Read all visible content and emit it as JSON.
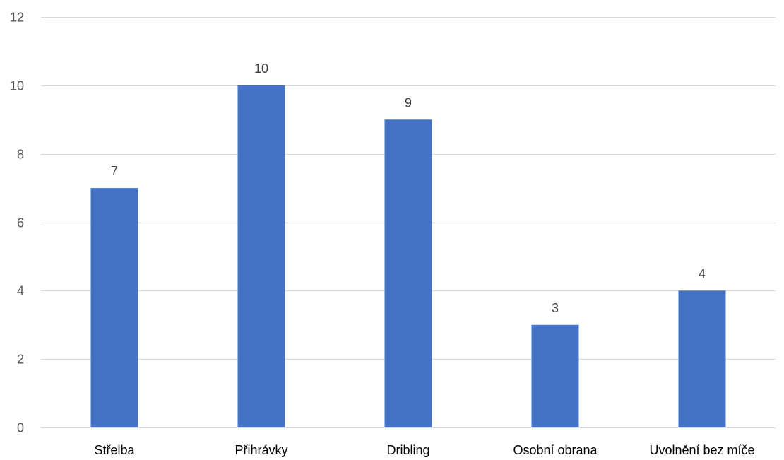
{
  "chart_data": {
    "type": "bar",
    "categories": [
      "Střelba",
      "Přihrávky",
      "Dribling",
      "Osobní obrana",
      "Uvolnění bez míče"
    ],
    "values": [
      7,
      10,
      9,
      3,
      4
    ],
    "data_labels": [
      "7",
      "10",
      "9",
      "3",
      "4"
    ],
    "ylim": [
      0,
      12
    ],
    "yticks": [
      0,
      2,
      4,
      6,
      8,
      10,
      12
    ],
    "ytick_labels": [
      "0",
      "2",
      "4",
      "6",
      "8",
      "10",
      "12"
    ],
    "grid": true,
    "legend": "none",
    "bar_color": "#4472c4",
    "grid_color": "#d9d9d9"
  }
}
